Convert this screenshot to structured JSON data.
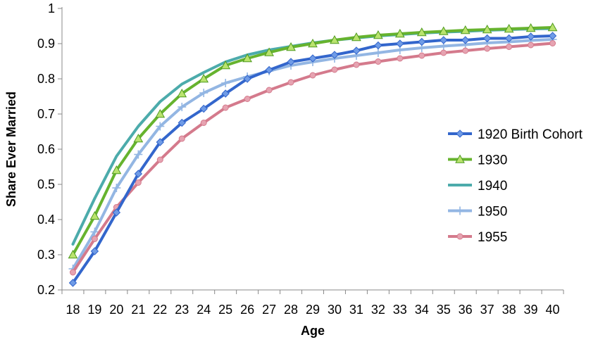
{
  "chart_data": {
    "type": "line",
    "title": "",
    "xlabel": "Age",
    "ylabel": "Share Ever Married",
    "x": [
      18,
      19,
      20,
      21,
      22,
      23,
      24,
      25,
      26,
      27,
      28,
      29,
      30,
      31,
      32,
      33,
      34,
      35,
      36,
      37,
      38,
      39,
      40
    ],
    "ylim": [
      0.2,
      1
    ],
    "yticks": [
      0.2,
      0.3,
      0.4,
      0.5,
      0.6,
      0.7,
      0.8,
      0.9,
      1
    ],
    "ytick_labels": [
      "0.2",
      "0.3",
      "0.4",
      "0.5",
      "0.6",
      "0.7",
      "0.8",
      "0.9",
      "1"
    ],
    "grid": false,
    "legend_position": "right",
    "series": [
      {
        "name": "1920 Birth Cohort",
        "color": "#3366cc",
        "marker": "diamond",
        "values": [
          0.22,
          0.31,
          0.42,
          0.53,
          0.62,
          0.675,
          0.715,
          0.758,
          0.8,
          0.825,
          0.848,
          0.858,
          0.868,
          0.88,
          0.895,
          0.9,
          0.905,
          0.91,
          0.91,
          0.915,
          0.915,
          0.92,
          0.922
        ]
      },
      {
        "name": "1930",
        "color": "#66b32e",
        "marker": "triangle",
        "values": [
          0.3,
          0.41,
          0.54,
          0.63,
          0.7,
          0.758,
          0.8,
          0.838,
          0.858,
          0.875,
          0.89,
          0.9,
          0.91,
          0.918,
          0.924,
          0.928,
          0.932,
          0.935,
          0.938,
          0.94,
          0.942,
          0.944,
          0.946
        ]
      },
      {
        "name": "1940",
        "color": "#4cabab",
        "marker": "none",
        "values": [
          0.33,
          0.46,
          0.58,
          0.665,
          0.735,
          0.785,
          0.818,
          0.848,
          0.868,
          0.882,
          0.892,
          0.902,
          0.91,
          0.916,
          0.922,
          0.926,
          0.93,
          0.933,
          0.935,
          0.938,
          0.94,
          0.942,
          0.943
        ]
      },
      {
        "name": "1950",
        "color": "#93b6e3",
        "marker": "plus",
        "values": [
          0.26,
          0.365,
          0.49,
          0.585,
          0.665,
          0.72,
          0.76,
          0.788,
          0.806,
          0.822,
          0.838,
          0.848,
          0.858,
          0.866,
          0.874,
          0.882,
          0.888,
          0.893,
          0.897,
          0.902,
          0.905,
          0.909,
          0.912
        ]
      },
      {
        "name": "1955",
        "color": "#d47a8c",
        "marker": "circle",
        "values": [
          0.25,
          0.345,
          0.435,
          0.505,
          0.57,
          0.63,
          0.675,
          0.718,
          0.743,
          0.768,
          0.79,
          0.81,
          0.826,
          0.84,
          0.849,
          0.858,
          0.866,
          0.874,
          0.88,
          0.886,
          0.891,
          0.896,
          0.901
        ]
      }
    ]
  }
}
